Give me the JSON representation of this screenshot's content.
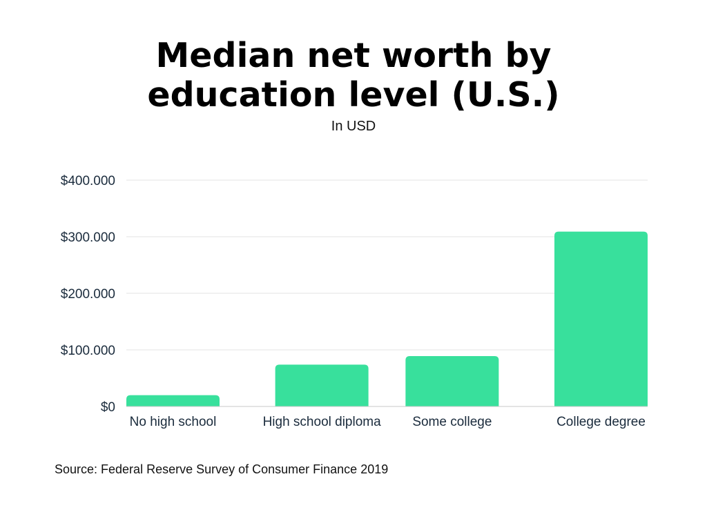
{
  "header": {
    "title_line1": "Median net worth by",
    "title_line2": "education level (U.S.)",
    "subtitle": "In USD"
  },
  "footer": {
    "source": "Source: Federal Reserve Survey of Consumer Finance 2019"
  },
  "chart_data": {
    "type": "bar",
    "title": "Median net worth by education level (U.S.)",
    "subtitle": "In USD",
    "xlabel": "",
    "ylabel": "",
    "categories": [
      "No high school",
      "High school diploma",
      "Some college",
      "College degree"
    ],
    "values": [
      20000,
      74000,
      89000,
      309000
    ],
    "ylim": [
      0,
      400000
    ],
    "yticks": [
      0,
      100000,
      200000,
      300000,
      400000
    ],
    "ytick_labels": [
      "$0",
      "$100.000",
      "$200.000",
      "$300.000",
      "$400.000"
    ],
    "bar_color": "#38e09c",
    "grid": true,
    "legend": "none"
  }
}
